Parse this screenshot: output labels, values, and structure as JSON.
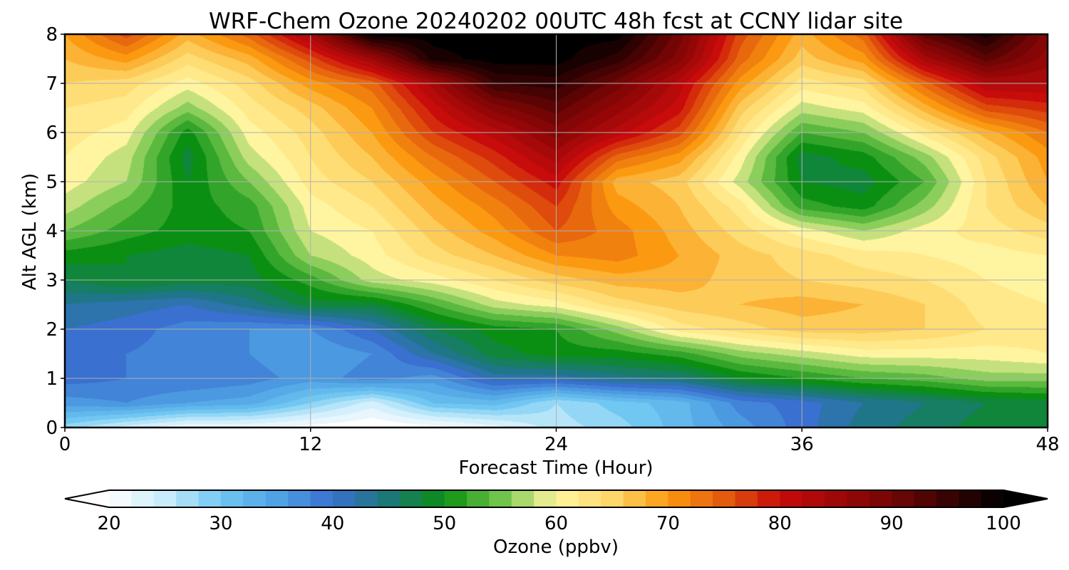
{
  "chart_data": {
    "type": "heatmap",
    "title": "WRF-Chem Ozone  20240202 00UTC 48h fcst at CCNY lidar site",
    "xlabel": "Forecast Time (Hour)",
    "ylabel": "Alt AGL (km)",
    "xlim": [
      0,
      48
    ],
    "ylim": [
      0,
      8
    ],
    "x_ticks": [
      0,
      12,
      24,
      36,
      48
    ],
    "y_ticks": [
      0,
      1,
      2,
      3,
      4,
      5,
      6,
      7,
      8
    ],
    "grid": true,
    "x": [
      0,
      3,
      6,
      9,
      12,
      15,
      18,
      21,
      24,
      27,
      30,
      33,
      36,
      39,
      42,
      45,
      48
    ],
    "y": [
      0,
      0.5,
      1,
      1.5,
      2,
      2.5,
      3,
      3.5,
      4,
      4.5,
      5,
      5.5,
      6,
      6.5,
      7,
      7.5,
      8
    ],
    "z": [
      [
        28,
        24,
        21,
        21,
        20,
        19,
        20,
        22,
        26,
        28,
        32,
        36,
        40,
        44,
        46,
        48,
        49
      ],
      [
        36,
        37,
        35,
        34,
        29,
        24,
        31,
        32,
        27,
        30,
        32,
        38,
        40,
        43,
        45,
        47,
        48
      ],
      [
        40,
        39,
        39,
        38,
        36,
        38,
        36,
        42,
        42,
        44,
        45,
        49,
        51,
        53,
        54,
        56,
        56
      ],
      [
        40,
        39,
        38,
        37,
        35,
        37,
        43,
        48,
        50,
        50,
        52,
        56,
        58,
        60,
        60,
        60,
        61
      ],
      [
        41,
        40,
        38,
        37,
        37,
        41,
        47,
        50,
        51,
        56,
        62,
        64,
        66,
        66,
        65,
        63,
        62
      ],
      [
        43,
        42,
        41,
        44,
        48,
        48,
        53,
        58,
        60,
        64,
        66,
        67,
        68,
        67,
        65,
        62,
        61
      ],
      [
        47,
        49,
        48,
        48,
        52,
        58,
        60,
        63,
        66,
        68,
        68,
        66,
        65,
        64,
        63,
        61,
        60
      ],
      [
        50,
        49,
        48,
        49,
        57,
        60,
        64,
        67,
        71,
        72,
        69,
        66,
        64,
        62,
        61,
        60,
        61
      ],
      [
        55,
        52,
        50,
        51,
        59,
        61,
        66,
        70,
        75,
        72,
        68,
        64,
        60,
        57,
        60,
        62,
        64
      ],
      [
        58,
        54,
        50,
        52,
        60,
        63,
        68,
        72,
        77,
        70,
        67,
        62,
        52,
        50,
        56,
        63,
        67
      ],
      [
        60,
        57,
        49,
        55,
        62,
        65,
        70,
        75,
        80,
        68,
        66,
        58,
        49,
        48,
        53,
        63,
        69
      ],
      [
        61,
        58,
        48,
        58,
        63,
        67,
        73,
        78,
        84,
        74,
        70,
        60,
        48,
        50,
        56,
        64,
        70
      ],
      [
        62,
        60,
        50,
        60,
        64,
        69,
        77,
        82,
        88,
        82,
        76,
        63,
        53,
        55,
        62,
        68,
        73
      ],
      [
        63,
        62,
        56,
        62,
        66,
        71,
        80,
        88,
        92,
        86,
        80,
        66,
        58,
        60,
        68,
        76,
        78
      ],
      [
        65,
        64,
        60,
        64,
        70,
        74,
        84,
        95,
        96,
        90,
        82,
        70,
        62,
        64,
        74,
        83,
        83
      ],
      [
        67,
        70,
        64,
        68,
        76,
        85,
        98,
        100,
        100,
        96,
        88,
        74,
        66,
        70,
        84,
        92,
        86
      ],
      [
        69,
        76,
        68,
        74,
        84,
        100,
        100,
        100,
        100,
        100,
        90,
        76,
        68,
        74,
        92,
        98,
        88
      ]
    ],
    "colorbar": {
      "label": "Ozone  (ppbv)",
      "min": 20,
      "max": 100,
      "ticks": [
        20,
        30,
        40,
        50,
        60,
        70,
        80,
        90,
        100
      ],
      "extend": "both",
      "colors": {
        "20": "#ffffff",
        "25": "#c8ecfb",
        "30": "#70c7f2",
        "35": "#4fa3e4",
        "40": "#3a70cf",
        "45": "#1a7877",
        "50": "#0a8f12",
        "55": "#6fc44b",
        "60": "#fff5a0",
        "65": "#fed76a",
        "70": "#fb9a10",
        "75": "#e35b0d",
        "80": "#c80b0b",
        "90": "#730505",
        "100": "#000000"
      }
    }
  }
}
